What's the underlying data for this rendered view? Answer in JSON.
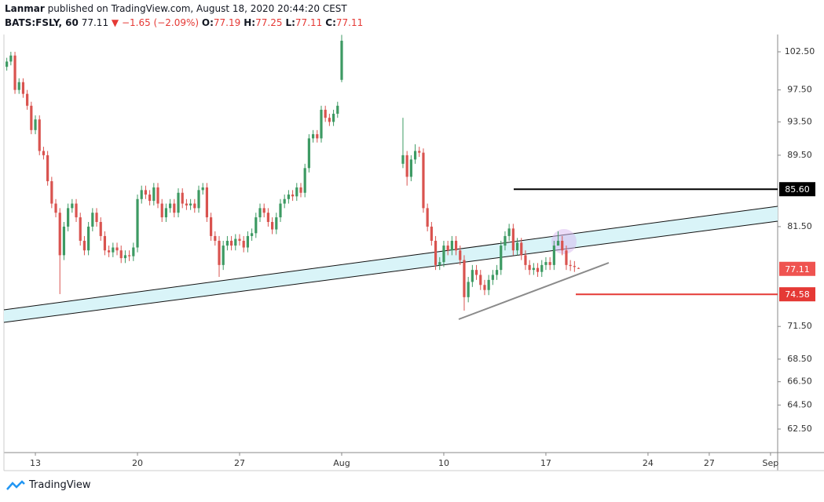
{
  "header": {
    "author": "Lanmar",
    "published": "published on TradingView.com, August 18, 2020 20:44:20 CEST",
    "symbol": "BATS:FSLY, 60",
    "last": "77.11",
    "change": "▼ −1.65 (−2.09%)",
    "ohlc": [
      {
        "label": "O:",
        "value": "77.19"
      },
      {
        "label": "H:",
        "value": "77.25"
      },
      {
        "label": "L:",
        "value": "77.11"
      },
      {
        "label": "C:",
        "value": "77.11"
      }
    ]
  },
  "footer": {
    "brand": "TradingView"
  },
  "chart_data": {
    "type": "candlestick",
    "log_scale": true,
    "grid": false,
    "up_color": "#3d9a63",
    "down_color": "#d9534f",
    "xlim": [
      -1.54,
      36.35
    ],
    "xticks": [
      {
        "value": 0,
        "label": "13"
      },
      {
        "value": 5,
        "label": "20"
      },
      {
        "value": 10,
        "label": "27"
      },
      {
        "value": 15,
        "label": "Aug"
      },
      {
        "value": 20,
        "label": "10"
      },
      {
        "value": 25,
        "label": "17"
      },
      {
        "value": 30,
        "label": "24"
      },
      {
        "value": 33,
        "label": "27"
      },
      {
        "value": 36,
        "label": "Sep"
      }
    ],
    "ylim": [
      60.6,
      104.85
    ],
    "yticks": [
      {
        "value": 102.5,
        "label": "102.50"
      },
      {
        "value": 97.5,
        "label": "97.50"
      },
      {
        "value": 93.5,
        "label": "93.50"
      },
      {
        "value": 89.5,
        "label": "89.50"
      },
      {
        "value": 81.5,
        "label": "81.50"
      },
      {
        "value": 71.5,
        "label": "71.50"
      },
      {
        "value": 68.5,
        "label": "68.50"
      },
      {
        "value": 66.5,
        "label": "66.50"
      },
      {
        "value": 64.5,
        "label": "64.50"
      },
      {
        "value": 62.5,
        "label": "62.50"
      }
    ],
    "levels": [
      {
        "value": 85.6,
        "label": "85.60",
        "color": "#000000"
      },
      {
        "value": 74.58,
        "label": "74.58",
        "color": "#e53935"
      }
    ],
    "last_price": {
      "value": 77.11,
      "color": "#ef5350"
    },
    "x": [
      -1.4,
      -1.2,
      -1.0,
      -0.8,
      -0.6,
      -0.4,
      -0.2,
      0,
      0.2,
      0.4,
      0.6,
      0.8,
      1.0,
      1.2,
      1.4,
      1.6,
      1.8,
      2.0,
      2.2,
      2.4,
      2.6,
      2.8,
      3.0,
      3.2,
      3.4,
      3.6,
      3.8,
      4.0,
      4.2,
      4.4,
      4.6,
      4.8,
      5.0,
      5.2,
      5.4,
      5.6,
      5.8,
      6.0,
      6.2,
      6.4,
      6.6,
      6.8,
      7.0,
      7.2,
      7.4,
      7.6,
      7.8,
      8.0,
      8.2,
      8.4,
      8.6,
      8.8,
      9.0,
      9.2,
      9.4,
      9.6,
      9.8,
      10.0,
      10.2,
      10.4,
      10.6,
      10.8,
      11.0,
      11.2,
      11.4,
      11.6,
      11.8,
      12.0,
      12.2,
      12.4,
      12.6,
      12.8,
      13.0,
      13.2,
      13.4,
      13.6,
      13.8,
      14.0,
      14.2,
      14.4,
      14.6,
      14.8,
      15.0,
      18.0,
      18.2,
      18.4,
      18.6,
      18.8,
      19.0,
      19.2,
      19.4,
      19.6,
      19.8,
      20.0,
      20.2,
      20.4,
      20.6,
      20.8,
      21.0,
      21.2,
      21.4,
      21.6,
      21.8,
      22.0,
      22.2,
      22.4,
      22.6,
      22.8,
      23.0,
      23.2,
      23.4,
      23.6,
      23.8,
      24.0,
      24.2,
      24.4,
      24.6,
      24.8,
      25.0,
      25.2,
      25.4,
      25.6,
      25.8,
      26.0,
      26.2,
      26.4,
      26.6
    ],
    "open": [
      100.5,
      101.2,
      102.0,
      97.5,
      98.5,
      97.0,
      95.5,
      92.5,
      93.8,
      90.0,
      89.5,
      86.5,
      84.0,
      83.0,
      78.5,
      81.5,
      83.5,
      84.0,
      82.5,
      80.0,
      79.0,
      81.5,
      83.0,
      82.0,
      80.5,
      79.0,
      78.8,
      79.3,
      79.0,
      78.2,
      78.5,
      78.4,
      79.3,
      84.5,
      85.5,
      85.0,
      84.3,
      85.8,
      84.0,
      82.5,
      83.5,
      84.0,
      83.0,
      85.2,
      84.0,
      83.8,
      84.0,
      83.5,
      85.5,
      85.8,
      82.5,
      80.5,
      80.0,
      77.5,
      79.5,
      80.0,
      79.5,
      80.2,
      80.0,
      79.3,
      80.5,
      80.8,
      82.5,
      83.5,
      83.0,
      82.0,
      81.2,
      82.5,
      84.0,
      84.5,
      85.0,
      84.8,
      85.8,
      85.2,
      88.0,
      91.5,
      92.0,
      91.5,
      95.0,
      94.0,
      93.5,
      94.5,
      98.8,
      88.5,
      89.5,
      87.0,
      89.0,
      90.0,
      89.8,
      83.5,
      81.5,
      80.0,
      77.5,
      77.8,
      79.5,
      79.0,
      80.0,
      79.0,
      78.0,
      74.3,
      75.8,
      77.0,
      76.5,
      75.5,
      75.0,
      76.0,
      76.5,
      77.0,
      79.5,
      80.5,
      81.3,
      79.0,
      79.8,
      78.5,
      77.5,
      77.0,
      77.2,
      76.8,
      77.5,
      77.8,
      77.5,
      79.5,
      80.0,
      79.0,
      77.5,
      77.4,
      77.19
    ],
    "high": [
      101.7,
      102.5,
      102.5,
      99.0,
      99.0,
      97.5,
      96.0,
      94.3,
      94.3,
      90.5,
      90.0,
      87.0,
      84.5,
      83.5,
      82.0,
      84.0,
      84.5,
      84.5,
      83.0,
      80.5,
      82.0,
      83.5,
      83.5,
      82.5,
      81.0,
      79.5,
      79.8,
      79.8,
      79.5,
      79.0,
      79.0,
      79.8,
      85.0,
      86.0,
      86.0,
      85.5,
      86.3,
      86.3,
      84.5,
      84.0,
      84.5,
      84.5,
      85.7,
      85.7,
      84.5,
      84.5,
      84.5,
      86.0,
      86.3,
      86.3,
      83.0,
      81.0,
      80.5,
      80.0,
      80.5,
      80.5,
      80.7,
      80.7,
      80.5,
      81.0,
      81.3,
      83.0,
      84.0,
      84.0,
      83.5,
      82.5,
      83.0,
      84.5,
      85.0,
      85.5,
      85.5,
      86.3,
      86.3,
      88.5,
      92.0,
      92.5,
      92.5,
      95.5,
      95.5,
      94.5,
      95.0,
      96.0,
      104.8,
      94.0,
      90.0,
      89.5,
      90.8,
      90.5,
      90.3,
      84.0,
      82.0,
      80.5,
      78.3,
      80.0,
      80.0,
      80.5,
      80.5,
      79.5,
      78.5,
      76.3,
      77.5,
      77.5,
      77.0,
      76.0,
      76.5,
      77.0,
      77.5,
      80.0,
      81.0,
      81.8,
      81.8,
      80.3,
      80.3,
      79.0,
      78.0,
      77.7,
      77.7,
      78.0,
      78.3,
      78.3,
      80.0,
      81.0,
      80.5,
      79.5,
      78.0,
      77.9,
      77.25
    ],
    "low": [
      100.0,
      100.7,
      97.0,
      97.0,
      96.5,
      95.0,
      92.0,
      92.0,
      89.5,
      89.0,
      86.0,
      83.5,
      82.5,
      74.6,
      78.0,
      81.0,
      83.0,
      82.0,
      79.5,
      78.5,
      78.5,
      81.0,
      81.5,
      80.0,
      78.5,
      78.3,
      78.3,
      78.5,
      77.7,
      77.7,
      77.9,
      77.9,
      78.8,
      84.0,
      84.5,
      83.8,
      83.8,
      83.5,
      82.0,
      82.0,
      83.0,
      82.5,
      82.5,
      83.5,
      83.3,
      83.3,
      83.0,
      83.0,
      85.0,
      82.0,
      80.0,
      79.5,
      76.3,
      77.0,
      79.0,
      79.0,
      79.0,
      79.5,
      78.8,
      78.8,
      80.0,
      80.3,
      82.0,
      82.5,
      81.5,
      80.7,
      80.7,
      82.0,
      83.5,
      84.0,
      84.3,
      84.3,
      84.7,
      84.7,
      87.5,
      91.0,
      91.0,
      91.0,
      93.5,
      93.0,
      93.0,
      94.0,
      98.5,
      88.0,
      86.0,
      86.5,
      88.5,
      89.3,
      83.0,
      81.0,
      79.5,
      77.0,
      77.0,
      77.3,
      78.5,
      78.5,
      78.5,
      77.5,
      73.0,
      73.8,
      75.3,
      76.0,
      75.0,
      74.5,
      74.5,
      75.5,
      76.0,
      76.5,
      79.0,
      80.0,
      78.5,
      78.5,
      78.0,
      77.0,
      76.5,
      76.5,
      76.3,
      76.3,
      77.0,
      77.0,
      77.0,
      79.5,
      78.5,
      77.0,
      76.9,
      76.8,
      77.11
    ],
    "close": [
      101.2,
      102.0,
      97.5,
      98.5,
      97.0,
      95.5,
      92.5,
      93.8,
      90.0,
      89.5,
      86.5,
      84.0,
      83.0,
      78.5,
      81.5,
      83.5,
      84.0,
      82.5,
      80.0,
      79.0,
      81.5,
      83.0,
      82.0,
      80.5,
      79.0,
      78.8,
      79.3,
      79.0,
      78.2,
      78.5,
      78.4,
      79.3,
      84.5,
      85.5,
      85.0,
      84.3,
      85.8,
      84.0,
      82.5,
      83.5,
      84.0,
      83.0,
      85.2,
      84.0,
      83.8,
      84.0,
      83.5,
      85.5,
      85.8,
      82.5,
      80.5,
      80.0,
      77.5,
      79.5,
      80.0,
      79.5,
      80.2,
      80.0,
      79.3,
      80.5,
      80.8,
      82.5,
      83.5,
      83.0,
      82.0,
      81.2,
      82.5,
      84.0,
      84.5,
      85.0,
      84.8,
      85.8,
      85.2,
      88.0,
      91.5,
      92.0,
      91.5,
      95.0,
      94.0,
      93.5,
      94.5,
      95.5,
      104.0,
      89.5,
      87.0,
      89.0,
      90.0,
      89.8,
      83.5,
      81.5,
      80.0,
      77.5,
      77.8,
      79.5,
      79.0,
      80.0,
      79.0,
      78.0,
      74.3,
      75.8,
      77.0,
      76.5,
      75.5,
      75.0,
      76.0,
      76.5,
      77.0,
      79.5,
      80.5,
      81.3,
      79.0,
      79.8,
      78.5,
      77.5,
      77.0,
      77.2,
      76.8,
      77.5,
      77.8,
      77.5,
      79.5,
      80.0,
      79.0,
      77.5,
      77.4,
      77.3,
      77.11
    ]
  }
}
